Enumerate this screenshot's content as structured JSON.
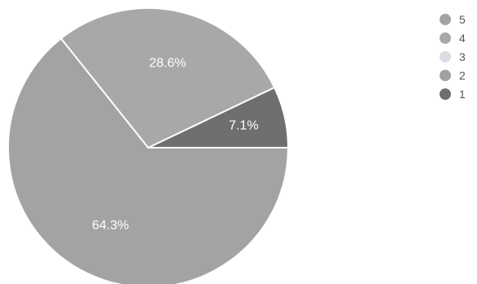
{
  "chart_data": {
    "type": "pie",
    "title": "",
    "categories": [
      "5",
      "4",
      "3",
      "2",
      "1"
    ],
    "values": [
      64.3,
      28.6,
      0,
      0,
      7.1
    ],
    "data_labels": [
      "64.3%",
      "28.6%",
      "",
      "",
      "7.1%"
    ],
    "colors": [
      "#a3a3a3",
      "#a8a8a8",
      "#dcdce4",
      "#a1a1a1",
      "#6f6f6f"
    ],
    "legend_position": "right"
  }
}
